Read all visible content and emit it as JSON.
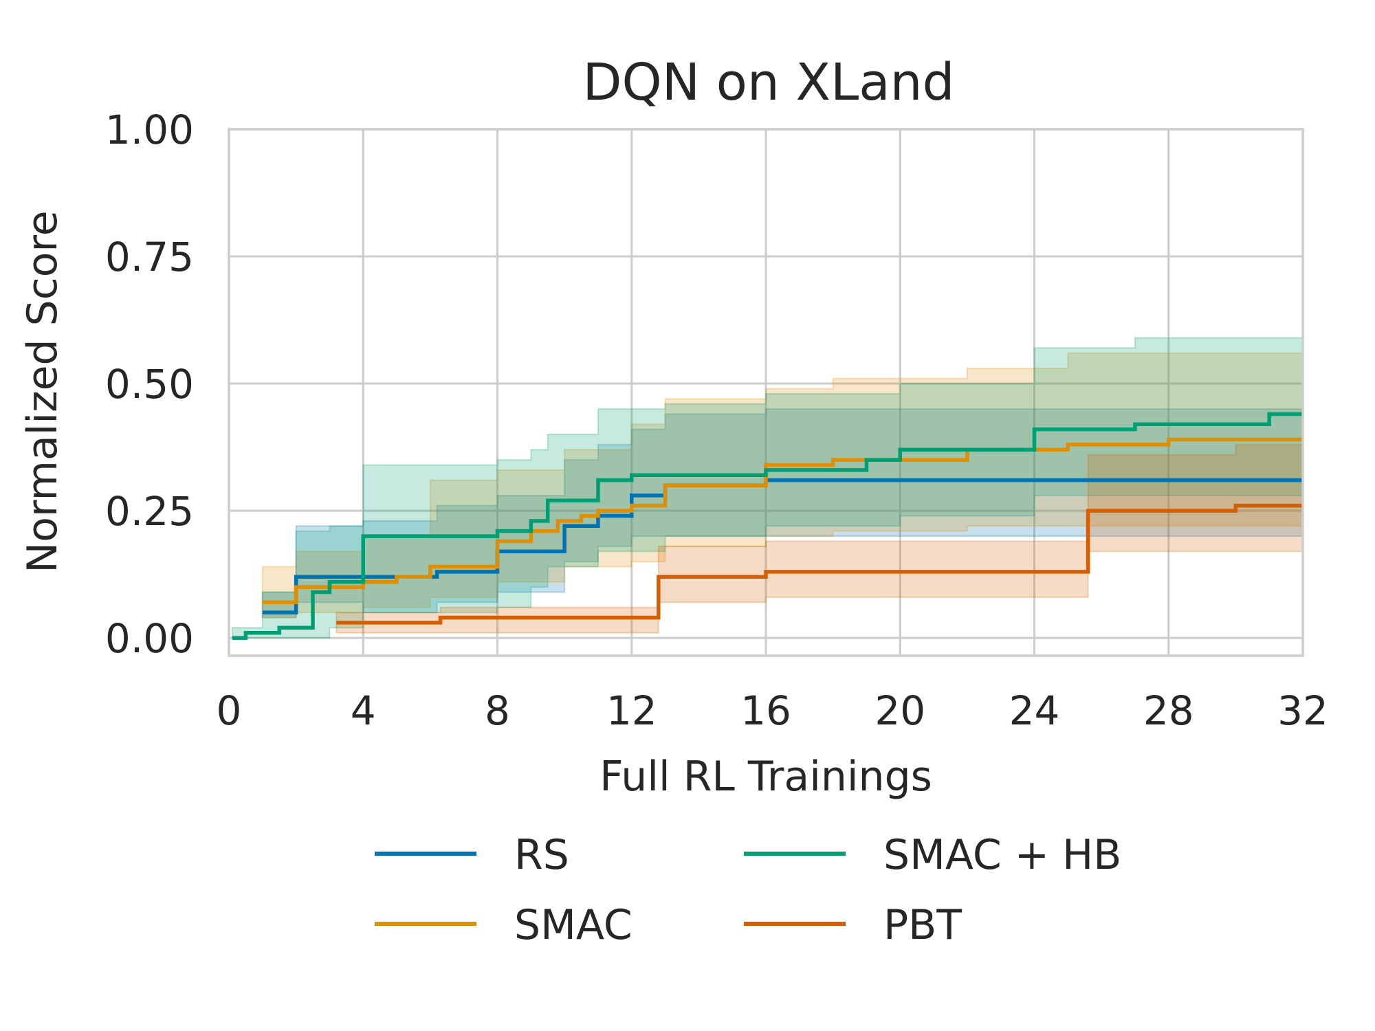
{
  "chart_data": {
    "type": "line",
    "title": "DQN on XLand",
    "xlabel": "Full RL Trainings",
    "ylabel": "Normalized Score",
    "xlim": [
      0,
      32
    ],
    "ylim": [
      -0.035,
      1.0
    ],
    "xticks": [
      0,
      4,
      8,
      12,
      16,
      20,
      24,
      28,
      32
    ],
    "xtick_labels": [
      "0",
      "4",
      "8",
      "12",
      "16",
      "20",
      "24",
      "28",
      "32"
    ],
    "yticks": [
      0.0,
      0.25,
      0.5,
      0.75,
      1.0
    ],
    "ytick_labels": [
      "0.00",
      "0.25",
      "0.50",
      "0.75",
      "1.00"
    ],
    "grid": true,
    "legend_position": "bottom-outside",
    "series": [
      {
        "name": "RS",
        "color": "#0173b2",
        "steps": [
          [
            1,
            0.05
          ],
          [
            2,
            0.12
          ],
          [
            4,
            0.12
          ],
          [
            6.2,
            0.13
          ],
          [
            8,
            0.17
          ],
          [
            10,
            0.22
          ],
          [
            11,
            0.24
          ],
          [
            12,
            0.28
          ],
          [
            13,
            0.3
          ],
          [
            16,
            0.31
          ],
          [
            30,
            0.31
          ],
          [
            32,
            0.31
          ]
        ],
        "band": [
          [
            1,
            0.04,
            0.09
          ],
          [
            2,
            0.07,
            0.22
          ],
          [
            4,
            0.05,
            0.23
          ],
          [
            6.2,
            0.07,
            0.26
          ],
          [
            8,
            0.09,
            0.28
          ],
          [
            10,
            0.15,
            0.35
          ],
          [
            11,
            0.18,
            0.38
          ],
          [
            12,
            0.2,
            0.41
          ],
          [
            13,
            0.2,
            0.44
          ],
          [
            16,
            0.2,
            0.45
          ],
          [
            24,
            0.2,
            0.45
          ],
          [
            32,
            0.2,
            0.45
          ]
        ]
      },
      {
        "name": "SMAC",
        "color": "#de8f05",
        "steps": [
          [
            1,
            0.07
          ],
          [
            2,
            0.1
          ],
          [
            4,
            0.11
          ],
          [
            5,
            0.12
          ],
          [
            6,
            0.14
          ],
          [
            8,
            0.19
          ],
          [
            9,
            0.21
          ],
          [
            9.8,
            0.23
          ],
          [
            10.5,
            0.24
          ],
          [
            11,
            0.25
          ],
          [
            12,
            0.26
          ],
          [
            13,
            0.3
          ],
          [
            16,
            0.34
          ],
          [
            18,
            0.35
          ],
          [
            22,
            0.37
          ],
          [
            25,
            0.38
          ],
          [
            28,
            0.39
          ],
          [
            32,
            0.39
          ]
        ],
        "band": [
          [
            1,
            0.04,
            0.14
          ],
          [
            2,
            0.05,
            0.17
          ],
          [
            4,
            0.06,
            0.2
          ],
          [
            6,
            0.08,
            0.31
          ],
          [
            8,
            0.11,
            0.33
          ],
          [
            10,
            0.14,
            0.37
          ],
          [
            12,
            0.15,
            0.42
          ],
          [
            13,
            0.18,
            0.47
          ],
          [
            16,
            0.2,
            0.49
          ],
          [
            18,
            0.21,
            0.51
          ],
          [
            22,
            0.22,
            0.53
          ],
          [
            25,
            0.22,
            0.56
          ],
          [
            28,
            0.22,
            0.56
          ],
          [
            32,
            0.22,
            0.56
          ]
        ]
      },
      {
        "name": "SMAC + HB",
        "color": "#029e73",
        "steps": [
          [
            0.1,
            0.0
          ],
          [
            0.5,
            0.01
          ],
          [
            1.5,
            0.02
          ],
          [
            2.5,
            0.09
          ],
          [
            3,
            0.11
          ],
          [
            4,
            0.2
          ],
          [
            8,
            0.21
          ],
          [
            9,
            0.23
          ],
          [
            9.5,
            0.27
          ],
          [
            11,
            0.31
          ],
          [
            12,
            0.32
          ],
          [
            16,
            0.33
          ],
          [
            19,
            0.35
          ],
          [
            20,
            0.37
          ],
          [
            24,
            0.41
          ],
          [
            27,
            0.42
          ],
          [
            31,
            0.44
          ],
          [
            32,
            0.44
          ]
        ],
        "band": [
          [
            0.1,
            0.0,
            0.02
          ],
          [
            1,
            0.0,
            0.09
          ],
          [
            2,
            0.0,
            0.21
          ],
          [
            3,
            0.02,
            0.22
          ],
          [
            4,
            0.05,
            0.34
          ],
          [
            8,
            0.06,
            0.35
          ],
          [
            9,
            0.1,
            0.37
          ],
          [
            9.5,
            0.14,
            0.4
          ],
          [
            11,
            0.17,
            0.45
          ],
          [
            13,
            0.2,
            0.46
          ],
          [
            16,
            0.22,
            0.48
          ],
          [
            20,
            0.24,
            0.5
          ],
          [
            24,
            0.28,
            0.57
          ],
          [
            27,
            0.28,
            0.59
          ],
          [
            32,
            0.29,
            0.61
          ]
        ]
      },
      {
        "name": "PBT",
        "color": "#d55e00",
        "steps": [
          [
            3.2,
            0.03
          ],
          [
            6.3,
            0.04
          ],
          [
            12.8,
            0.12
          ],
          [
            16,
            0.13
          ],
          [
            25.6,
            0.25
          ],
          [
            30,
            0.26
          ],
          [
            32,
            0.26
          ]
        ],
        "band": [
          [
            3.2,
            0.01,
            0.05
          ],
          [
            6.3,
            0.01,
            0.06
          ],
          [
            12.8,
            0.07,
            0.18
          ],
          [
            16,
            0.08,
            0.19
          ],
          [
            25.6,
            0.17,
            0.36
          ],
          [
            30,
            0.17,
            0.38
          ],
          [
            32,
            0.16,
            0.38
          ]
        ]
      }
    ]
  }
}
